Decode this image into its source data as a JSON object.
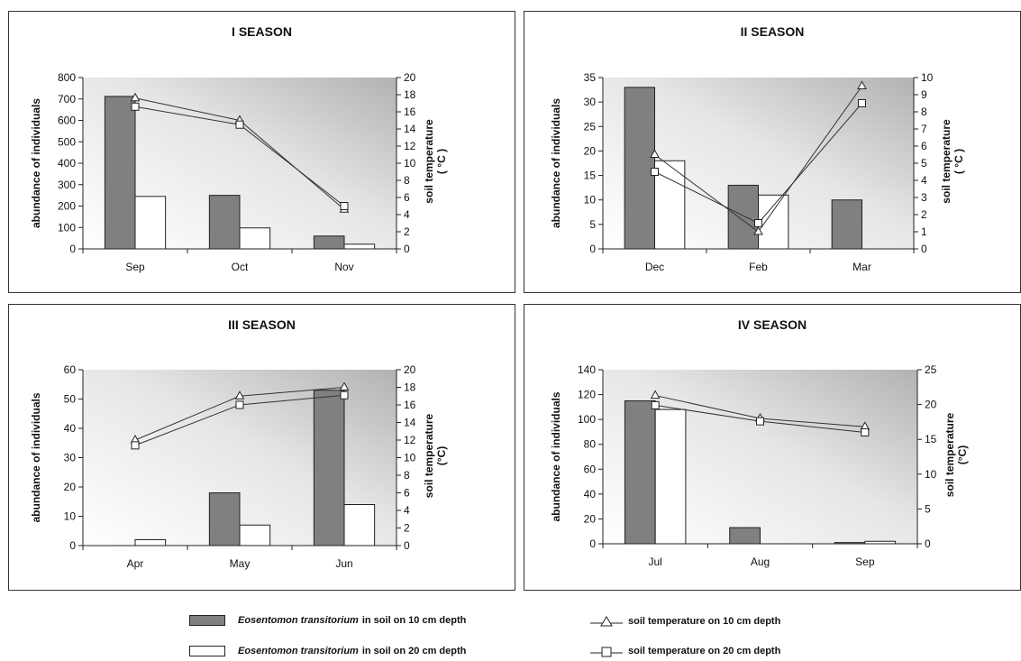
{
  "chart_data": [
    {
      "type": "bar",
      "title": "I SEASON",
      "categories": [
        "Sep",
        "Oct",
        "Nov"
      ],
      "ylabel": "abundance of individuals",
      "ylabel_right": "soil temperature",
      "ylabel_right_unit": "( °C )",
      "ylim": [
        0,
        800
      ],
      "yticks": [
        0,
        100,
        200,
        300,
        400,
        500,
        600,
        700,
        800
      ],
      "y2lim": [
        0,
        20
      ],
      "y2ticks": [
        0,
        2,
        4,
        6,
        8,
        10,
        12,
        14,
        16,
        18,
        20
      ],
      "series": [
        {
          "name": "Eosentomon transitorium in soil on 10 cm depth",
          "kind": "bar",
          "color": "#808080",
          "values": [
            712,
            250,
            60
          ]
        },
        {
          "name": "Eosentomon transitorium in soil on 20 cm depth",
          "kind": "bar",
          "color": "#ffffff",
          "values": [
            245,
            98,
            22
          ]
        },
        {
          "name": "soil temperature on 10 cm depth",
          "kind": "line",
          "axis": "right",
          "marker": "triangle",
          "values": [
            17.6,
            15.0,
            4.6
          ]
        },
        {
          "name": "soil temperature on 20 cm depth",
          "kind": "line",
          "axis": "right",
          "marker": "square",
          "values": [
            16.6,
            14.5,
            5.0
          ]
        }
      ],
      "grid": false
    },
    {
      "type": "bar",
      "title": "II SEASON",
      "categories": [
        "Dec",
        "Feb",
        "Mar"
      ],
      "ylabel": "abundance of individuals",
      "ylabel_right": "soil temperature",
      "ylabel_right_unit": "( °C )",
      "ylim": [
        0,
        35
      ],
      "yticks": [
        0,
        5,
        10,
        15,
        20,
        25,
        30,
        35
      ],
      "y2lim": [
        0,
        10
      ],
      "y2ticks": [
        0,
        1,
        2,
        3,
        4,
        5,
        6,
        7,
        8,
        9,
        10
      ],
      "series": [
        {
          "name": "Eosentomon transitorium in soil on 10 cm depth",
          "kind": "bar",
          "color": "#808080",
          "values": [
            33,
            13,
            10
          ]
        },
        {
          "name": "Eosentomon transitorium in soil on 20 cm depth",
          "kind": "bar",
          "color": "#ffffff",
          "values": [
            18,
            11,
            0
          ]
        },
        {
          "name": "soil temperature on 10 cm depth",
          "kind": "line",
          "axis": "right",
          "marker": "triangle",
          "values": [
            5.5,
            1.0,
            9.5
          ]
        },
        {
          "name": "soil temperature on 20 cm depth",
          "kind": "line",
          "axis": "right",
          "marker": "square",
          "values": [
            4.5,
            1.5,
            8.5
          ]
        }
      ],
      "grid": false
    },
    {
      "type": "bar",
      "title": "III SEASON",
      "categories": [
        "Apr",
        "May",
        "Jun"
      ],
      "ylabel": "abundance of individuals",
      "ylabel_right": "soil temperature",
      "ylabel_right_unit": "(°C)",
      "ylim": [
        0,
        60
      ],
      "yticks": [
        0,
        10,
        20,
        30,
        40,
        50,
        60
      ],
      "y2lim": [
        0,
        20
      ],
      "y2ticks": [
        0,
        2,
        4,
        6,
        8,
        10,
        12,
        14,
        16,
        18,
        20
      ],
      "series": [
        {
          "name": "Eosentomon transitorium in soil on 10 cm depth",
          "kind": "bar",
          "color": "#808080",
          "values": [
            0,
            18,
            53
          ]
        },
        {
          "name": "Eosentomon transitorium in soil on 20 cm depth",
          "kind": "bar",
          "color": "#ffffff",
          "values": [
            2,
            7,
            14
          ]
        },
        {
          "name": "soil temperature on 10 cm depth",
          "kind": "line",
          "axis": "right",
          "marker": "triangle",
          "values": [
            12.0,
            17.0,
            18.0
          ]
        },
        {
          "name": "soil temperature on 20 cm depth",
          "kind": "line",
          "axis": "right",
          "marker": "square",
          "values": [
            11.4,
            16.0,
            17.1
          ]
        }
      ],
      "grid": false
    },
    {
      "type": "bar",
      "title": "IV SEASON",
      "categories": [
        "Jul",
        "Aug",
        "Sep"
      ],
      "ylabel": "abundance of individuals",
      "ylabel_right": "soil temperature",
      "ylabel_right_unit": "(°C)",
      "ylim": [
        0,
        140
      ],
      "yticks": [
        0,
        20,
        40,
        60,
        80,
        100,
        120,
        140
      ],
      "y2lim": [
        0,
        25
      ],
      "y2ticks": [
        0,
        5,
        10,
        15,
        20,
        25
      ],
      "series": [
        {
          "name": "Eosentomon transitorium in soil on 10 cm depth",
          "kind": "bar",
          "color": "#808080",
          "values": [
            115,
            13,
            1
          ]
        },
        {
          "name": "Eosentomon transitorium in soil on 20 cm depth",
          "kind": "bar",
          "color": "#ffffff",
          "values": [
            108,
            0,
            2
          ]
        },
        {
          "name": "soil temperature on 10 cm depth",
          "kind": "line",
          "axis": "right",
          "marker": "triangle",
          "values": [
            21.3,
            18.0,
            16.8
          ]
        },
        {
          "name": "soil temperature on 20 cm depth",
          "kind": "line",
          "axis": "right",
          "marker": "square",
          "values": [
            19.9,
            17.6,
            16.0
          ]
        }
      ],
      "grid": false
    }
  ],
  "legend": {
    "bar10_species": "Eosentomon transitorium",
    "bar10_rest": "in soil on 10 cm depth",
    "bar20_species": "Eosentomon transitorium",
    "bar20_rest": "in soil on 20 cm depth",
    "line10": "soil temperature on 10 cm depth",
    "line20": "soil temperature on 20 cm depth"
  }
}
